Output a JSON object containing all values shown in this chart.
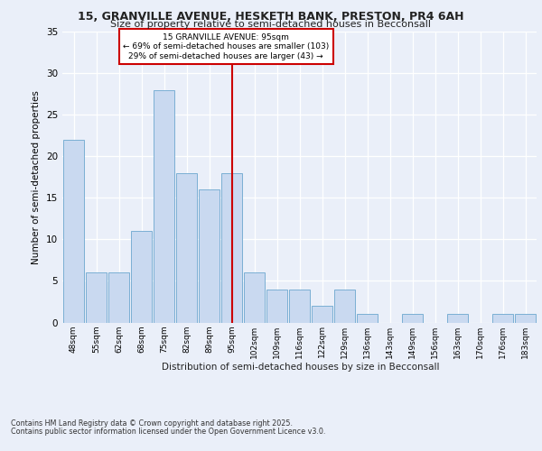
{
  "title_line1": "15, GRANVILLE AVENUE, HESKETH BANK, PRESTON, PR4 6AH",
  "title_line2": "Size of property relative to semi-detached houses in Becconsall",
  "xlabel": "Distribution of semi-detached houses by size in Becconsall",
  "ylabel": "Number of semi-detached properties",
  "categories": [
    "48sqm",
    "55sqm",
    "62sqm",
    "68sqm",
    "75sqm",
    "82sqm",
    "89sqm",
    "95sqm",
    "102sqm",
    "109sqm",
    "116sqm",
    "122sqm",
    "129sqm",
    "136sqm",
    "143sqm",
    "149sqm",
    "156sqm",
    "163sqm",
    "170sqm",
    "176sqm",
    "183sqm"
  ],
  "values": [
    22,
    6,
    6,
    11,
    28,
    18,
    16,
    18,
    6,
    4,
    4,
    2,
    4,
    1,
    0,
    1,
    0,
    1,
    0,
    1,
    1
  ],
  "bar_color": "#c9d9f0",
  "bar_edge_color": "#7bafd4",
  "vline_x": 7,
  "vline_color": "#cc0000",
  "annotation_title": "15 GRANVILLE AVENUE: 95sqm",
  "annotation_line1": "← 69% of semi-detached houses are smaller (103)",
  "annotation_line2": "29% of semi-detached houses are larger (43) →",
  "ylim": [
    0,
    35
  ],
  "yticks": [
    0,
    5,
    10,
    15,
    20,
    25,
    30,
    35
  ],
  "footer_line1": "Contains HM Land Registry data © Crown copyright and database right 2025.",
  "footer_line2": "Contains public sector information licensed under the Open Government Licence v3.0.",
  "bg_color": "#eaeff9",
  "plot_bg_color": "#eaeff9"
}
